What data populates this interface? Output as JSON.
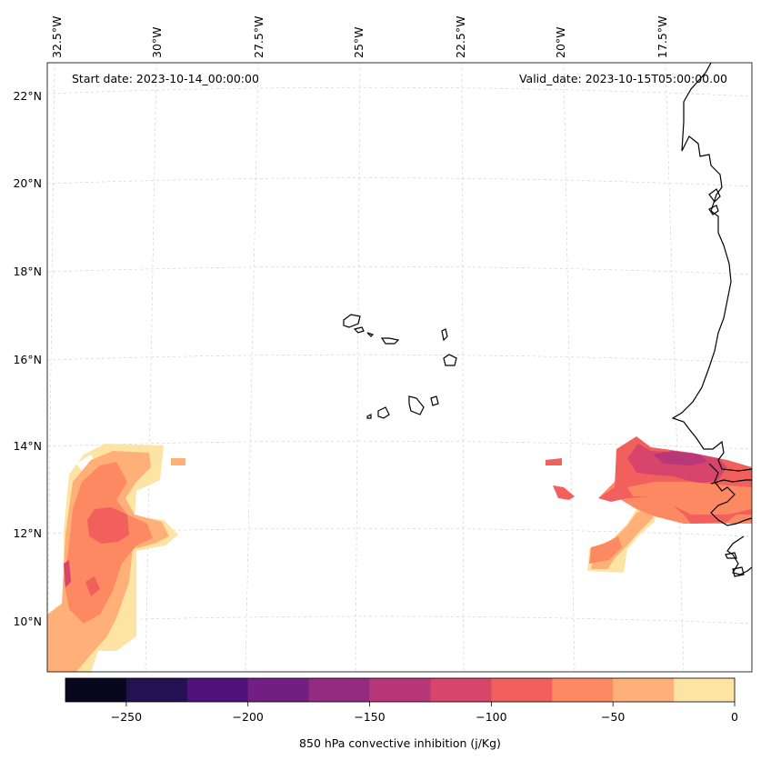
{
  "map": {
    "start_date": "Start date: 2023-10-14_00:00:00",
    "valid_date": "Valid_date: 2023-10-15T05:00:00.00",
    "lon_labels": [
      "32.5°W",
      "30°W",
      "27.5°W",
      "25°W",
      "22.5°W",
      "20°W",
      "17.5°W"
    ],
    "lat_labels": [
      "22°N",
      "20°N",
      "18°N",
      "16°N",
      "14°N",
      "12°N",
      "10°N"
    ],
    "regions": [
      "Cape Verde islands",
      "West African coast"
    ]
  },
  "colorbar": {
    "label": "850 hPa convective inhibition (j/Kg)",
    "tick_labels": [
      "−250",
      "−200",
      "−150",
      "−100",
      "−50",
      "0"
    ],
    "levels": [
      -275,
      -250,
      -225,
      -200,
      -175,
      -150,
      -125,
      -100,
      -75,
      -50,
      -25,
      0
    ],
    "colors": [
      "#08071e",
      "#231151",
      "#4f127b",
      "#721f81",
      "#932b80",
      "#b73779",
      "#d8456c",
      "#f1605d",
      "#fc8961",
      "#feb078",
      "#fde4a5"
    ]
  },
  "colors": {
    "cin_m25_0": "#fde4a5",
    "cin_m50_m25": "#feb078",
    "cin_m75_m50": "#fc8961",
    "cin_m100_m75": "#f1605d",
    "cin_m125_m100": "#d8456c",
    "cin_m150_m125": "#b73779"
  }
}
